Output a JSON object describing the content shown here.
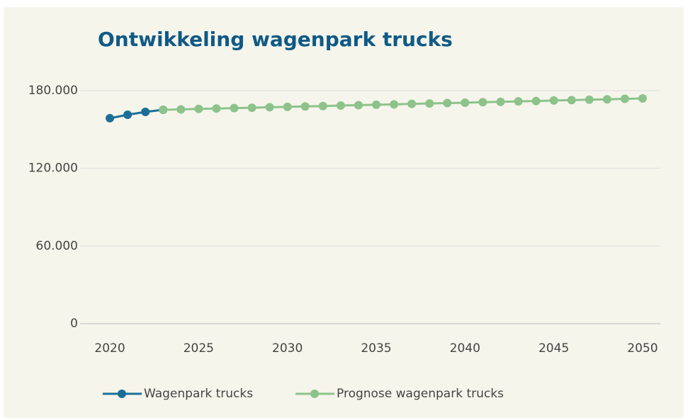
{
  "chart_data": {
    "type": "line",
    "title": "Ontwikkeling wagenpark trucks",
    "x": [
      2020,
      2021,
      2022,
      2023,
      2024,
      2025,
      2026,
      2027,
      2028,
      2029,
      2030,
      2031,
      2032,
      2033,
      2034,
      2035,
      2036,
      2037,
      2038,
      2039,
      2040,
      2041,
      2042,
      2043,
      2044,
      2045,
      2046,
      2047,
      2048,
      2049,
      2050
    ],
    "series": [
      {
        "name": "Wagenpark trucks",
        "color": "#1a6e98",
        "values": [
          158700,
          161400,
          163600,
          165200,
          null,
          null,
          null,
          null,
          null,
          null,
          null,
          null,
          null,
          null,
          null,
          null,
          null,
          null,
          null,
          null,
          null,
          null,
          null,
          null,
          null,
          null,
          null,
          null,
          null,
          null,
          null
        ]
      },
      {
        "name": "Prognose wagenpark trucks",
        "color": "#8dc38a",
        "values": [
          null,
          null,
          null,
          165200,
          165500,
          165900,
          166200,
          166500,
          166800,
          167200,
          167500,
          167800,
          168100,
          168500,
          168800,
          169100,
          169400,
          169800,
          170100,
          170400,
          170700,
          171100,
          171400,
          171700,
          172000,
          172400,
          172700,
          173000,
          173300,
          173700,
          174000
        ]
      }
    ],
    "xlim": [
      2019,
      2051
    ],
    "xticks": [
      2020,
      2025,
      2030,
      2035,
      2040,
      2045,
      2050
    ],
    "ylim": [
      0,
      180000
    ],
    "yticks": [
      0,
      {
        "value": 60000,
        "label": "60.000"
      },
      {
        "value": 120000,
        "label": "120.000"
      },
      {
        "value": 180000,
        "label": "180.000"
      }
    ],
    "grid": true,
    "legend": "bottom"
  }
}
